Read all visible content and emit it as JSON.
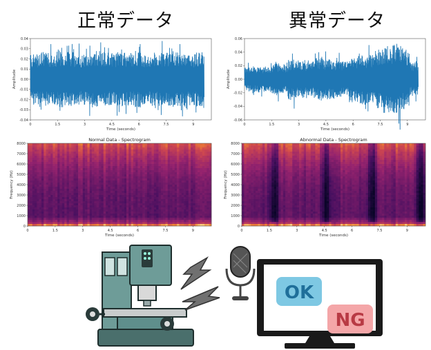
{
  "headings": {
    "normal": "正常データ",
    "abnormal": "異常データ"
  },
  "badges": {
    "ok": "OK",
    "ng": "NG"
  },
  "colors": {
    "waveform": "#1f77b4",
    "ok_bg": "#7ec8e3",
    "ok_text": "#1f6f9a",
    "ng_bg": "#f4a6a8",
    "ng_text": "#b83a44",
    "machine": "#5f8f8c"
  },
  "icons": [
    "milling-machine-icon",
    "sound-wave-icon",
    "microphone-icon",
    "monitor-icon"
  ],
  "chart_data": [
    {
      "type": "line",
      "title": "",
      "xlabel": "Time (seconds)",
      "ylabel": "Amplitude",
      "x_ticks": [
        "0",
        "1.5",
        "3",
        "4.5",
        "6",
        "7.5",
        "9"
      ],
      "y_ticks": [
        "0.04",
        "0.03",
        "0.02",
        "0.01",
        "0.00",
        "-0.01",
        "-0.02",
        "-0.03",
        "-0.04"
      ],
      "xlim": [
        0,
        10
      ],
      "ylim": [
        -0.04,
        0.04
      ],
      "envelope": [
        0.025,
        0.027,
        0.026,
        0.028,
        0.027,
        0.025,
        0.026,
        0.028,
        0.027,
        0.026,
        0.027,
        0.026,
        0.028,
        0.025,
        0.027,
        0.026,
        0.028,
        0.027,
        0.026,
        0.027
      ]
    },
    {
      "type": "line",
      "title": "",
      "xlabel": "Time (seconds)",
      "ylabel": "Amplitude",
      "x_ticks": [
        "0",
        "1.5",
        "3",
        "4.5",
        "6",
        "7.5",
        "9"
      ],
      "y_ticks": [
        "0.06",
        "0.04",
        "0.02",
        "0.00",
        "-0.02",
        "-0.04",
        "-0.06"
      ],
      "xlim": [
        0,
        10
      ],
      "ylim": [
        -0.06,
        0.06
      ],
      "envelope": [
        0.018,
        0.02,
        0.019,
        0.024,
        0.022,
        0.03,
        0.028,
        0.026,
        0.032,
        0.03,
        0.028,
        0.027,
        0.034,
        0.038,
        0.036,
        0.045,
        0.05,
        0.055,
        0.045,
        0.025
      ]
    },
    {
      "type": "heatmap",
      "title": "Normal Data - Spectrogram",
      "xlabel": "Time (seconds)",
      "ylabel": "Frequency (Hz)",
      "x_ticks": [
        "0",
        "1.5",
        "3",
        "4.5",
        "6",
        "7.5",
        "9"
      ],
      "y_ticks": [
        "8000",
        "7000",
        "6000",
        "5000",
        "4000",
        "3000",
        "2000",
        "1000",
        "0"
      ],
      "xlim": [
        0,
        10
      ],
      "ylim": [
        0,
        8000
      ],
      "dark_bands": []
    },
    {
      "type": "heatmap",
      "title": "Abnormal Data - Spectrogram",
      "xlabel": "Time (seconds)",
      "ylabel": "Frequency (Hz)",
      "x_ticks": [
        "0",
        "1.5",
        "3",
        "4.5",
        "6",
        "7.5",
        "9"
      ],
      "y_ticks": [
        "8000",
        "7000",
        "6000",
        "5000",
        "4000",
        "3000",
        "2000",
        "1000",
        "0"
      ],
      "xlim": [
        0,
        10
      ],
      "ylim": [
        0,
        8000
      ],
      "dark_bands": [
        1.7,
        4.55,
        7.05,
        9.7
      ]
    }
  ]
}
